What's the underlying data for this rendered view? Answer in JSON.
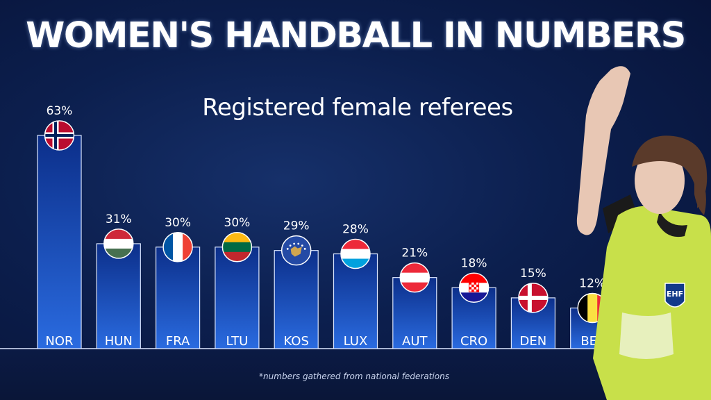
{
  "title": "WOMEN'S HANDBALL IN NUMBERS",
  "footnote": "*numbers gathered from national federations",
  "badge": {
    "logo_text": "EHF"
  },
  "colors": {
    "bar_top": "#2a6be0",
    "bar_bottom": "#0c2f8a",
    "bar_edge": "#dbe6ff",
    "background": "#0c1f4e",
    "jersey": "#c8e04a"
  },
  "chart_data": {
    "type": "bar",
    "title": "Registered female referees",
    "xlabel": "",
    "ylabel": "",
    "ylim": [
      0,
      63
    ],
    "categories": [
      "NOR",
      "HUN",
      "FRA",
      "LTU",
      "KOS",
      "LUX",
      "AUT",
      "CRO",
      "DEN",
      "BEL"
    ],
    "series": [
      {
        "values": [
          63,
          31,
          30,
          30,
          29,
          28,
          21,
          18,
          15,
          12
        ]
      }
    ],
    "data_labels": [
      "63%",
      "31%",
      "30%",
      "30%",
      "29%",
      "28%",
      "21%",
      "18%",
      "15%",
      "12%"
    ],
    "flags": [
      "norway-flag-icon",
      "hungary-flag-icon",
      "france-flag-icon",
      "lithuania-flag-icon",
      "kosovo-flag-icon",
      "luxembourg-flag-icon",
      "austria-flag-icon",
      "croatia-flag-icon",
      "denmark-flag-icon",
      "belgium-flag-icon"
    ],
    "grid": false,
    "legend": "none"
  }
}
